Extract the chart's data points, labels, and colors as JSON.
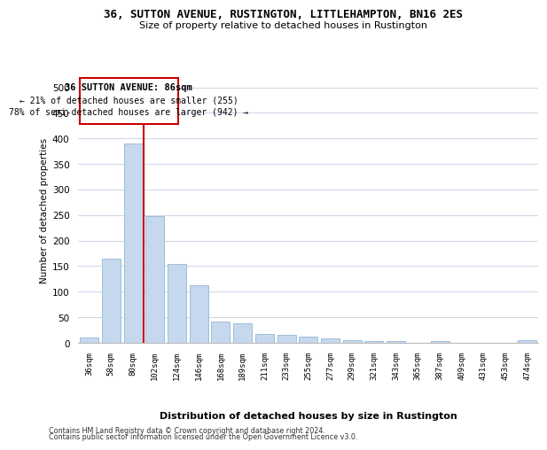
{
  "title1": "36, SUTTON AVENUE, RUSTINGTON, LITTLEHAMPTON, BN16 2ES",
  "title2": "Size of property relative to detached houses in Rustington",
  "xlabel": "Distribution of detached houses by size in Rustington",
  "ylabel": "Number of detached properties",
  "categories": [
    "36sqm",
    "58sqm",
    "80sqm",
    "102sqm",
    "124sqm",
    "146sqm",
    "168sqm",
    "189sqm",
    "211sqm",
    "233sqm",
    "255sqm",
    "277sqm",
    "299sqm",
    "321sqm",
    "343sqm",
    "365sqm",
    "387sqm",
    "409sqm",
    "431sqm",
    "453sqm",
    "474sqm"
  ],
  "values": [
    11,
    165,
    390,
    248,
    155,
    112,
    42,
    38,
    18,
    15,
    13,
    8,
    6,
    4,
    3,
    0,
    4,
    0,
    0,
    0,
    5
  ],
  "bar_color": "#c5d8ed",
  "bar_edge_color": "#a0bdd8",
  "red_line_bar_index": 2,
  "annotation_title": "36 SUTTON AVENUE: 86sqm",
  "annotation_line1": "← 21% of detached houses are smaller (255)",
  "annotation_line2": "78% of semi-detached houses are larger (942) →",
  "red_line_color": "#cc0000",
  "ylim": [
    0,
    520
  ],
  "yticks": [
    0,
    50,
    100,
    150,
    200,
    250,
    300,
    350,
    400,
    450,
    500
  ],
  "footer1": "Contains HM Land Registry data © Crown copyright and database right 2024.",
  "footer2": "Contains public sector information licensed under the Open Government Licence v3.0.",
  "bg_color": "#ffffff",
  "grid_color": "#d0d8e8"
}
